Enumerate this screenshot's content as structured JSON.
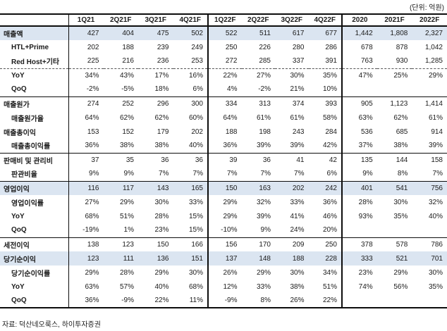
{
  "unit_note": "(단위: 억원)",
  "source_note": "자료: 덕산네오룩스, 하이투자증권",
  "colors": {
    "highlight_row": "#dbe5f1",
    "border": "#0d0d0d",
    "text": "#1b1b1b"
  },
  "table": {
    "columns": [
      "1Q21",
      "2Q21F",
      "3Q21F",
      "4Q21F",
      "1Q22F",
      "2Q22F",
      "3Q22F",
      "4Q22F",
      "2020",
      "2021F",
      "2022F"
    ],
    "group_boundaries_after_column_index": [
      3,
      7
    ],
    "rows": [
      {
        "label": "매출액",
        "indent": false,
        "highlight": true,
        "separator": "none",
        "values": [
          "427",
          "404",
          "475",
          "502",
          "522",
          "511",
          "617",
          "677",
          "1,442",
          "1,808",
          "2,327"
        ]
      },
      {
        "label": "HTL+Prime",
        "indent": true,
        "highlight": false,
        "separator": "none",
        "values": [
          "202",
          "188",
          "239",
          "249",
          "250",
          "226",
          "280",
          "286",
          "678",
          "878",
          "1,042"
        ]
      },
      {
        "label": "Red Host+기타",
        "indent": true,
        "highlight": false,
        "separator": "none",
        "values": [
          "225",
          "216",
          "236",
          "253",
          "272",
          "285",
          "337",
          "391",
          "763",
          "930",
          "1,285"
        ]
      },
      {
        "label": "YoY",
        "indent": true,
        "highlight": false,
        "separator": "dashed",
        "values": [
          "34%",
          "43%",
          "17%",
          "16%",
          "22%",
          "27%",
          "30%",
          "35%",
          "47%",
          "25%",
          "29%"
        ]
      },
      {
        "label": "QoQ",
        "indent": true,
        "highlight": false,
        "separator": "none",
        "values": [
          "-2%",
          "-5%",
          "18%",
          "6%",
          "4%",
          "-2%",
          "21%",
          "10%",
          "",
          "",
          ""
        ]
      },
      {
        "label": "매출원가",
        "indent": false,
        "highlight": false,
        "separator": "solid",
        "values": [
          "274",
          "252",
          "296",
          "300",
          "334",
          "313",
          "374",
          "393",
          "905",
          "1,123",
          "1,414"
        ]
      },
      {
        "label": "매출원가율",
        "indent": true,
        "highlight": false,
        "separator": "none",
        "values": [
          "64%",
          "62%",
          "62%",
          "60%",
          "64%",
          "61%",
          "61%",
          "58%",
          "63%",
          "62%",
          "61%"
        ]
      },
      {
        "label": "매출총이익",
        "indent": false,
        "highlight": false,
        "separator": "none",
        "values": [
          "153",
          "152",
          "179",
          "202",
          "188",
          "198",
          "243",
          "284",
          "536",
          "685",
          "914"
        ]
      },
      {
        "label": "매출총이익률",
        "indent": true,
        "highlight": false,
        "separator": "none",
        "values": [
          "36%",
          "38%",
          "38%",
          "40%",
          "36%",
          "39%",
          "39%",
          "42%",
          "37%",
          "38%",
          "39%"
        ]
      },
      {
        "label": "판매비 및 관리비",
        "indent": false,
        "highlight": false,
        "separator": "solid",
        "values": [
          "37",
          "35",
          "36",
          "36",
          "39",
          "36",
          "41",
          "42",
          "135",
          "144",
          "158"
        ]
      },
      {
        "label": "판관비율",
        "indent": true,
        "highlight": false,
        "separator": "none",
        "values": [
          "9%",
          "9%",
          "7%",
          "7%",
          "7%",
          "7%",
          "7%",
          "6%",
          "9%",
          "8%",
          "7%"
        ]
      },
      {
        "label": "영업이익",
        "indent": false,
        "highlight": true,
        "separator": "solid",
        "values": [
          "116",
          "117",
          "143",
          "165",
          "150",
          "163",
          "202",
          "242",
          "401",
          "541",
          "756"
        ]
      },
      {
        "label": "영업이익률",
        "indent": true,
        "highlight": false,
        "separator": "none",
        "values": [
          "27%",
          "29%",
          "30%",
          "33%",
          "29%",
          "32%",
          "33%",
          "36%",
          "28%",
          "30%",
          "32%"
        ]
      },
      {
        "label": "YoY",
        "indent": true,
        "highlight": false,
        "separator": "none",
        "values": [
          "68%",
          "51%",
          "28%",
          "15%",
          "29%",
          "39%",
          "41%",
          "46%",
          "93%",
          "35%",
          "40%"
        ]
      },
      {
        "label": "QoQ",
        "indent": true,
        "highlight": false,
        "separator": "none",
        "values": [
          "-19%",
          "1%",
          "23%",
          "15%",
          "-10%",
          "9%",
          "24%",
          "20%",
          "",
          "",
          ""
        ]
      },
      {
        "label": "세전이익",
        "indent": false,
        "highlight": false,
        "separator": "solid",
        "values": [
          "138",
          "123",
          "150",
          "166",
          "156",
          "170",
          "209",
          "250",
          "378",
          "578",
          "786"
        ]
      },
      {
        "label": "당기순이익",
        "indent": false,
        "highlight": true,
        "separator": "none",
        "values": [
          "123",
          "111",
          "136",
          "151",
          "137",
          "148",
          "188",
          "228",
          "333",
          "521",
          "701"
        ]
      },
      {
        "label": "당기순이익률",
        "indent": true,
        "highlight": false,
        "separator": "none",
        "values": [
          "29%",
          "28%",
          "29%",
          "30%",
          "26%",
          "29%",
          "30%",
          "34%",
          "23%",
          "29%",
          "30%"
        ]
      },
      {
        "label": "YoY",
        "indent": true,
        "highlight": false,
        "separator": "none",
        "values": [
          "63%",
          "57%",
          "40%",
          "68%",
          "12%",
          "33%",
          "38%",
          "51%",
          "74%",
          "56%",
          "35%"
        ]
      },
      {
        "label": "QoQ",
        "indent": true,
        "highlight": false,
        "separator": "none",
        "values": [
          "36%",
          "-9%",
          "22%",
          "11%",
          "-9%",
          "8%",
          "26%",
          "22%",
          "",
          "",
          ""
        ]
      }
    ]
  }
}
